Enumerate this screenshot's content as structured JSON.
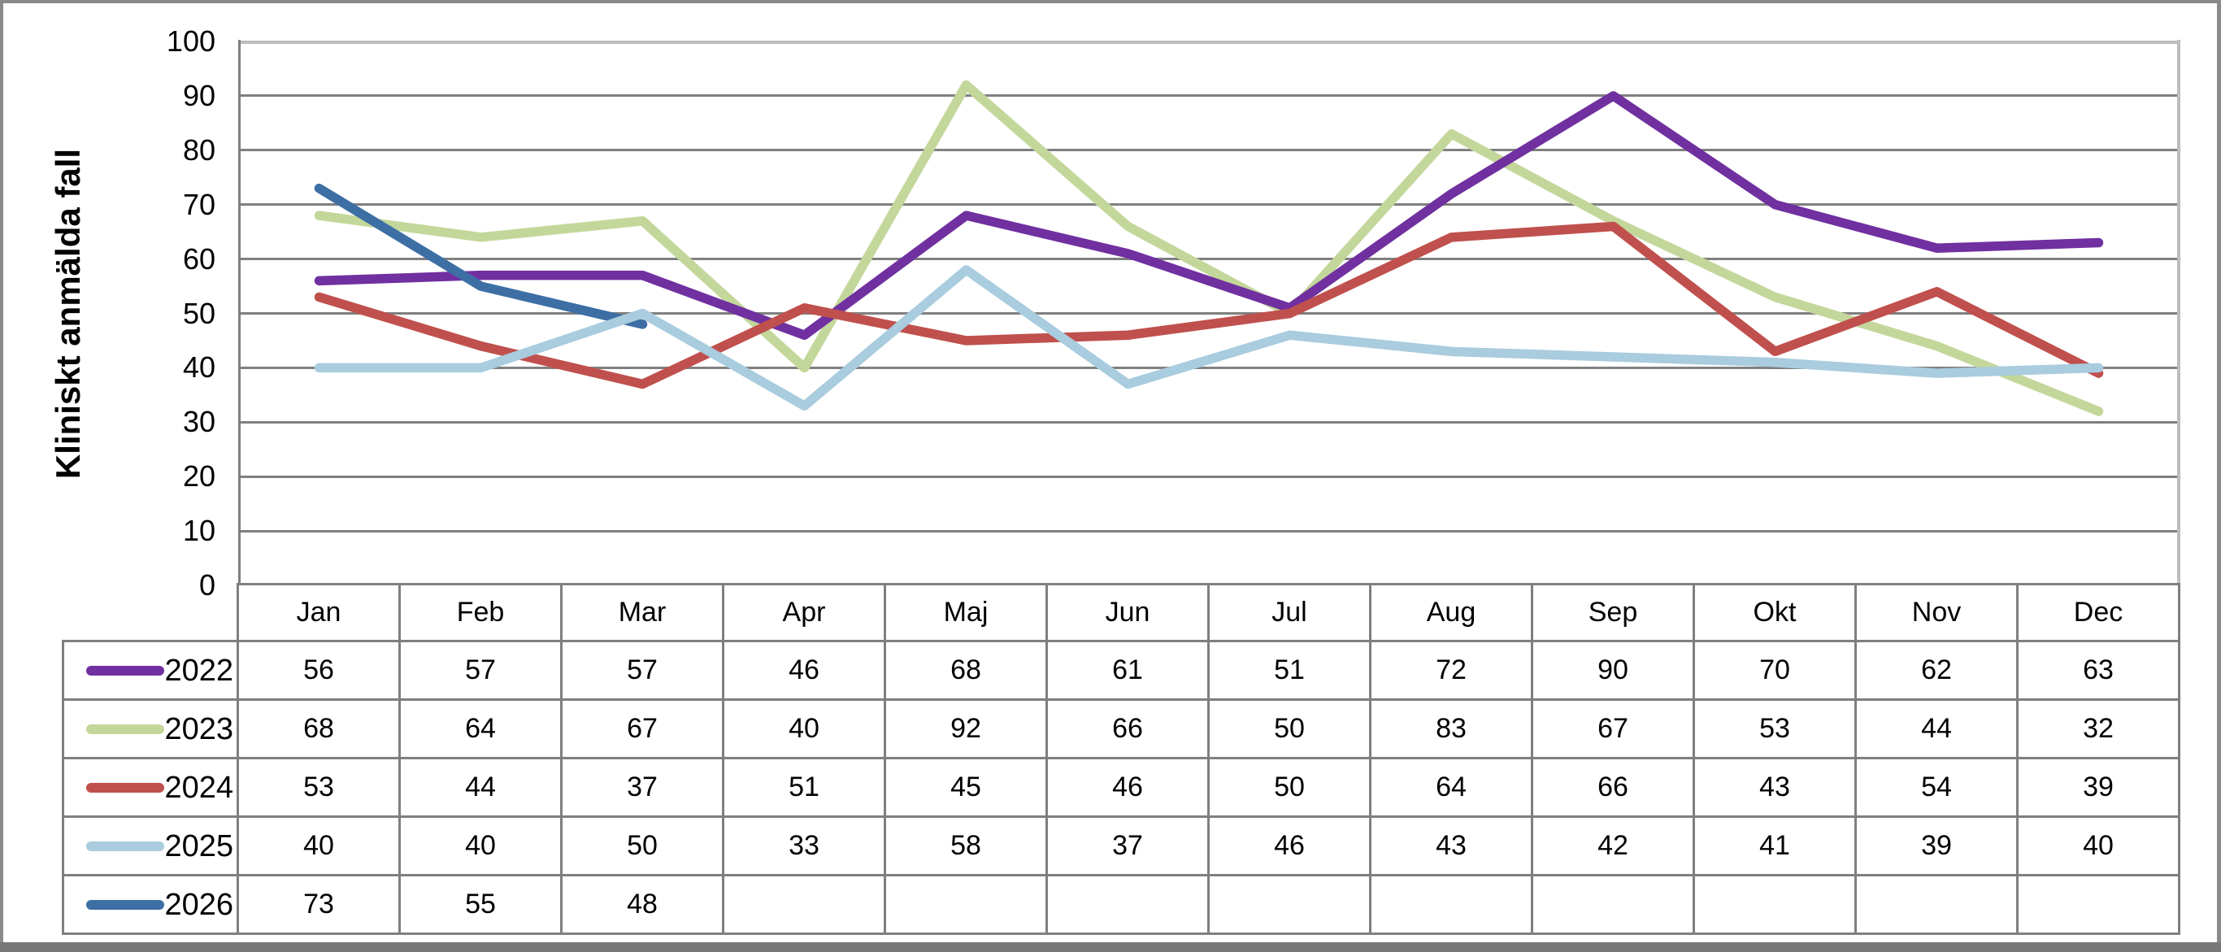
{
  "chart_data": {
    "type": "line",
    "title": "",
    "ylabel": "Kliniskt anmälda fall",
    "xlabel": "",
    "ylim": [
      0,
      100
    ],
    "ytick_step": 10,
    "grid": "horizontal",
    "legend_position": "table-left-column",
    "categories": [
      "Jan",
      "Feb",
      "Mar",
      "Apr",
      "Maj",
      "Jun",
      "Jul",
      "Aug",
      "Sep",
      "Okt",
      "Nov",
      "Dec"
    ],
    "series": [
      {
        "name": "2022",
        "color": "#7030A0",
        "values": [
          56,
          57,
          57,
          46,
          68,
          61,
          51,
          72,
          90,
          70,
          62,
          63
        ]
      },
      {
        "name": "2023",
        "color": "#C4D79B",
        "values": [
          68,
          64,
          67,
          40,
          92,
          66,
          50,
          83,
          67,
          53,
          44,
          32
        ]
      },
      {
        "name": "2024",
        "color": "#C0504D",
        "values": [
          53,
          44,
          37,
          51,
          45,
          46,
          50,
          64,
          66,
          43,
          54,
          39
        ]
      },
      {
        "name": "2025",
        "color": "#A9CCDE",
        "values": [
          40,
          40,
          50,
          33,
          58,
          37,
          46,
          43,
          42,
          41,
          39,
          40
        ]
      },
      {
        "name": "2026",
        "color": "#3D6FA5",
        "values": [
          73,
          55,
          48
        ]
      }
    ]
  },
  "colors": {
    "gridline": "#7F7F7F",
    "plot_border": "#BDBDBD",
    "table_border": "#7F7F7F",
    "frame": "#8A8A8A",
    "background": "#FFFFFF",
    "text": "#000000"
  }
}
